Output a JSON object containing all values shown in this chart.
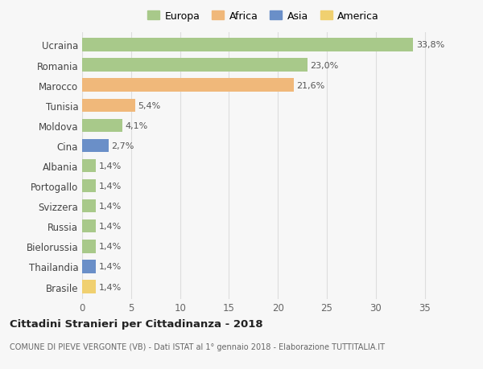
{
  "categories": [
    "Ucraina",
    "Romania",
    "Marocco",
    "Tunisia",
    "Moldova",
    "Cina",
    "Albania",
    "Portogallo",
    "Svizzera",
    "Russia",
    "Bielorussia",
    "Thailandia",
    "Brasile"
  ],
  "values": [
    33.8,
    23.0,
    21.6,
    5.4,
    4.1,
    2.7,
    1.4,
    1.4,
    1.4,
    1.4,
    1.4,
    1.4,
    1.4
  ],
  "labels": [
    "33,8%",
    "23,0%",
    "21,6%",
    "5,4%",
    "4,1%",
    "2,7%",
    "1,4%",
    "1,4%",
    "1,4%",
    "1,4%",
    "1,4%",
    "1,4%",
    "1,4%"
  ],
  "continents": [
    "Europa",
    "Europa",
    "Africa",
    "Africa",
    "Europa",
    "Asia",
    "Europa",
    "Europa",
    "Europa",
    "Europa",
    "Europa",
    "Asia",
    "America"
  ],
  "continent_colors": {
    "Europa": "#a8c98a",
    "Africa": "#f0b87a",
    "Asia": "#6a8fc8",
    "America": "#f0d070"
  },
  "legend_order": [
    "Europa",
    "Africa",
    "Asia",
    "America"
  ],
  "title": "Cittadini Stranieri per Cittadinanza - 2018",
  "subtitle": "COMUNE DI PIEVE VERGONTE (VB) - Dati ISTAT al 1° gennaio 2018 - Elaborazione TUTTITALIA.IT",
  "xlim": [
    0,
    37
  ],
  "xticks": [
    0,
    5,
    10,
    15,
    20,
    25,
    30,
    35
  ],
  "background_color": "#f7f7f7",
  "grid_color": "#dddddd",
  "bar_height": 0.65
}
